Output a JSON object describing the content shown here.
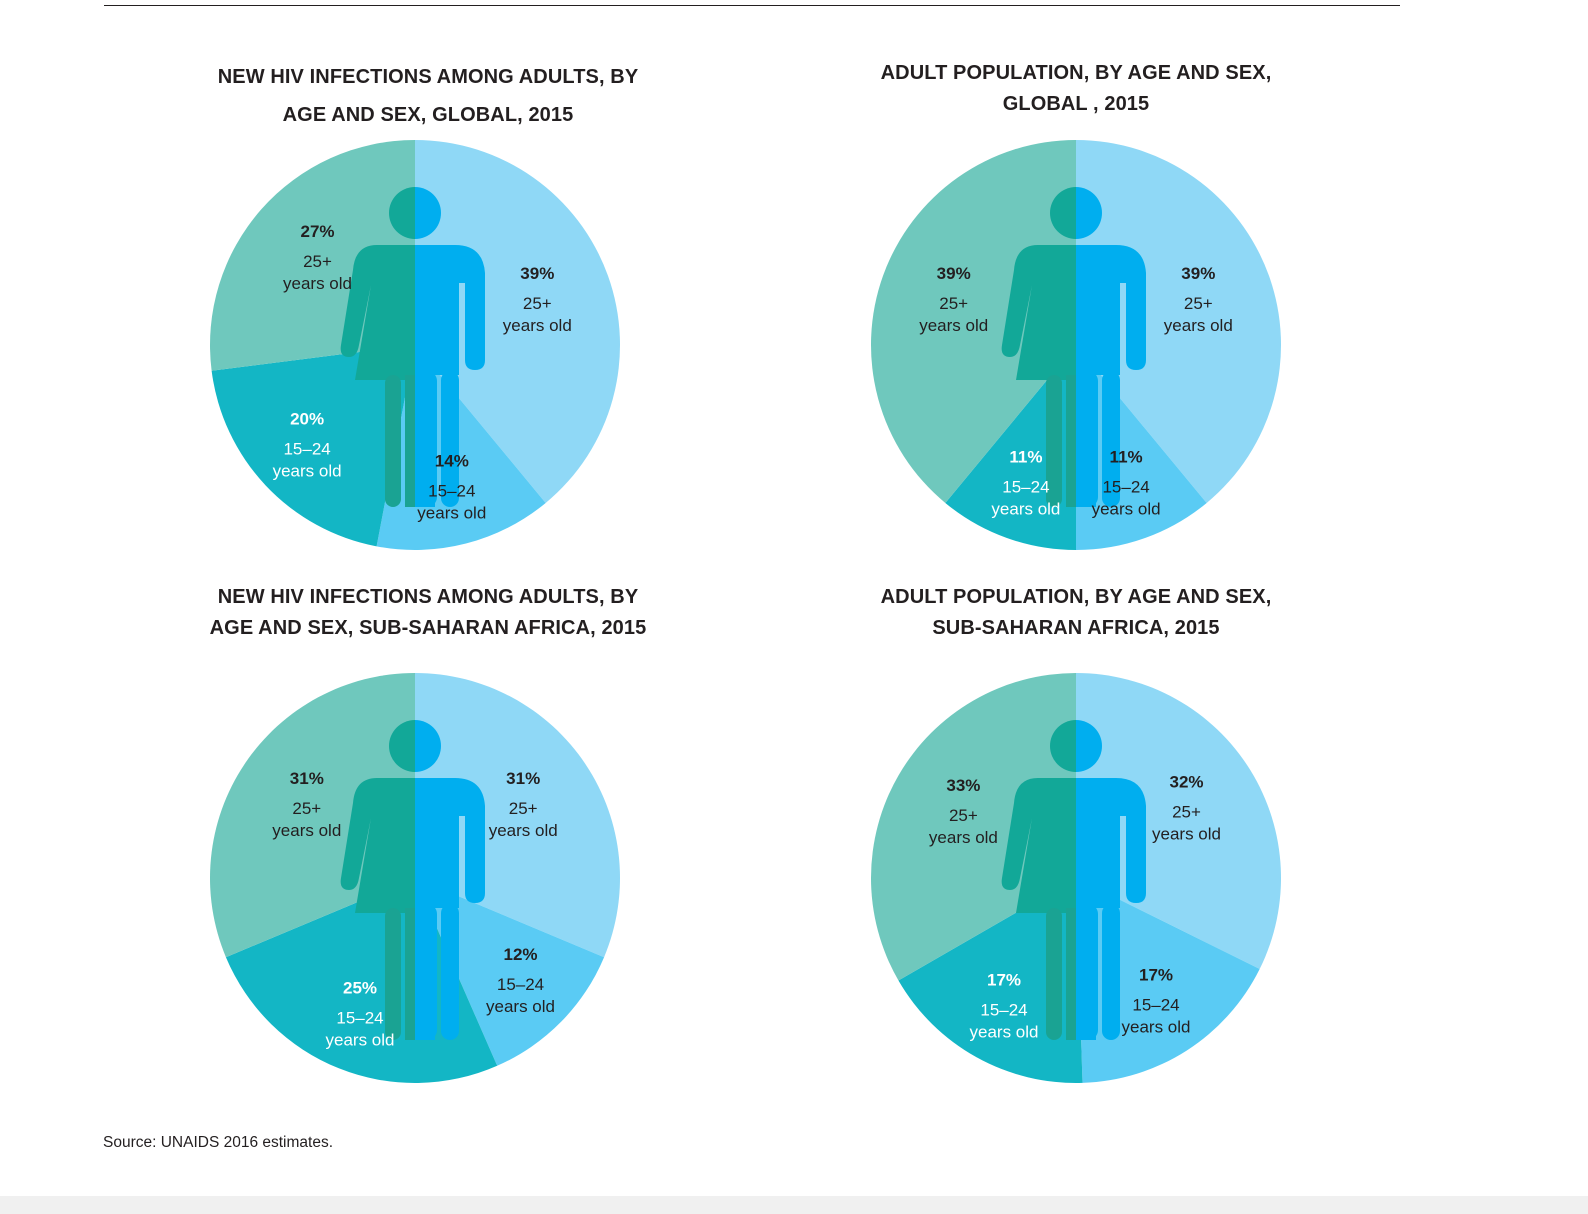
{
  "source": "Source: UNAIDS 2016 estimates.",
  "colors": {
    "female_25plus": "#6fc8bd",
    "female_15_24": "#13b6c5",
    "male_25plus": "#8fd8f6",
    "male_15_24": "#5acbf4",
    "figure_female": "#12a898",
    "figure_male": "#00aeef",
    "figure_female_legs": "#1aa393",
    "text_dark": "#231f20",
    "text_light": "#ffffff"
  },
  "chart_data": [
    {
      "type": "pie",
      "title_lines": [
        "NEW HIV INFECTIONS AMONG ADULTS, BY",
        "AGE AND SEX, GLOBAL, 2015"
      ],
      "slices": [
        {
          "sex": "male",
          "group": "25+",
          "value": 39,
          "pct_label": "39%",
          "line1": "25+",
          "line2": "years old",
          "color_key": "male_25plus",
          "text": "dark"
        },
        {
          "sex": "male",
          "group": "15-24",
          "value": 14,
          "pct_label": "14%",
          "line1": "15–24",
          "line2": "years old",
          "color_key": "male_15_24",
          "text": "dark"
        },
        {
          "sex": "female",
          "group": "15-24",
          "value": 20,
          "pct_label": "20%",
          "line1": "15–24",
          "line2": "years old",
          "color_key": "female_15_24",
          "text": "light"
        },
        {
          "sex": "female",
          "group": "25+",
          "value": 27,
          "pct_label": "27%",
          "line1": "25+",
          "line2": "years old",
          "color_key": "female_25plus",
          "text": "dark"
        }
      ]
    },
    {
      "type": "pie",
      "title_lines": [
        "ADULT POPULATION, BY AGE AND SEX,",
        "GLOBAL , 2015"
      ],
      "slices": [
        {
          "sex": "male",
          "group": "25+",
          "value": 39,
          "pct_label": "39%",
          "line1": "25+",
          "line2": "years old",
          "color_key": "male_25plus",
          "text": "dark"
        },
        {
          "sex": "male",
          "group": "15-24",
          "value": 11,
          "pct_label": "11%",
          "line1": "15–24",
          "line2": "years old",
          "color_key": "male_15_24",
          "text": "dark"
        },
        {
          "sex": "female",
          "group": "15-24",
          "value": 11,
          "pct_label": "11%",
          "line1": "15–24",
          "line2": "years old",
          "color_key": "female_15_24",
          "text": "light"
        },
        {
          "sex": "female",
          "group": "25+",
          "value": 39,
          "pct_label": "39%",
          "line1": "25+",
          "line2": "years old",
          "color_key": "female_25plus",
          "text": "dark"
        }
      ]
    },
    {
      "type": "pie",
      "title_lines": [
        "NEW HIV INFECTIONS AMONG ADULTS, BY",
        "AGE AND SEX, SUB-SAHARAN AFRICA, 2015"
      ],
      "slices": [
        {
          "sex": "male",
          "group": "25+",
          "value": 31,
          "pct_label": "31%",
          "line1": "25+",
          "line2": "years old",
          "color_key": "male_25plus",
          "text": "dark"
        },
        {
          "sex": "male",
          "group": "15-24",
          "value": 12,
          "pct_label": "12%",
          "line1": "15–24",
          "line2": "years old",
          "color_key": "male_15_24",
          "text": "dark"
        },
        {
          "sex": "female",
          "group": "15-24",
          "value": 25,
          "pct_label": "25%",
          "line1": "15–24",
          "line2": "years old",
          "color_key": "female_15_24",
          "text": "light"
        },
        {
          "sex": "female",
          "group": "25+",
          "value": 31,
          "pct_label": "31%",
          "line1": "25+",
          "line2": "years old",
          "color_key": "female_25plus",
          "text": "dark"
        }
      ]
    },
    {
      "type": "pie",
      "title_lines": [
        "ADULT POPULATION, BY AGE AND SEX,",
        "SUB-SAHARAN AFRICA, 2015"
      ],
      "slices": [
        {
          "sex": "male",
          "group": "25+",
          "value": 32,
          "pct_label": "32%",
          "line1": "25+",
          "line2": "years old",
          "color_key": "male_25plus",
          "text": "dark"
        },
        {
          "sex": "male",
          "group": "15-24",
          "value": 17,
          "pct_label": "17%",
          "line1": "15–24",
          "line2": "years old",
          "color_key": "male_15_24",
          "text": "dark"
        },
        {
          "sex": "female",
          "group": "15-24",
          "value": 17,
          "pct_label": "17%",
          "line1": "15–24",
          "line2": "years old",
          "color_key": "female_15_24",
          "text": "light"
        },
        {
          "sex": "female",
          "group": "25+",
          "value": 33,
          "pct_label": "33%",
          "line1": "25+",
          "line2": "years old",
          "color_key": "female_25plus",
          "text": "dark"
        }
      ]
    }
  ]
}
